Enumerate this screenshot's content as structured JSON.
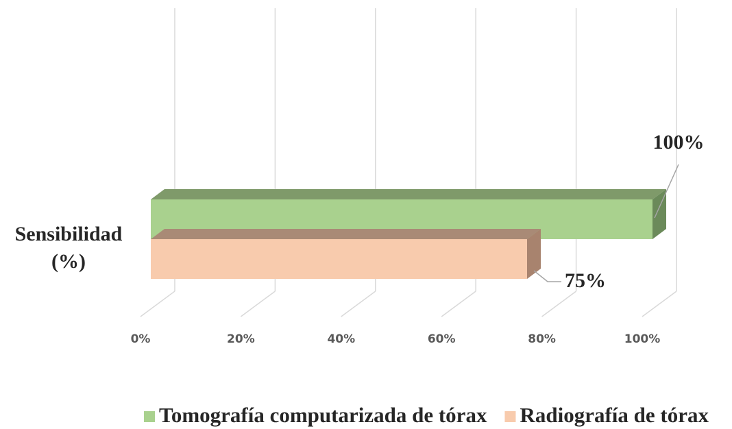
{
  "chart_data": {
    "type": "bar3d_horizontal",
    "categories": [
      "Sensibilidad (%)"
    ],
    "series": [
      {
        "name": "Tomografía computarizada de tórax",
        "color": "#a9d18e",
        "values": [
          100
        ],
        "value_labels": [
          "100%"
        ]
      },
      {
        "name": "Radiografía de tórax",
        "color": "#f8cbad",
        "values": [
          75
        ],
        "value_labels": [
          "75%"
        ]
      }
    ],
    "xlim": [
      0,
      100
    ],
    "xticks": [
      {
        "value": 0,
        "label": "0%"
      },
      {
        "value": 20,
        "label": "20%"
      },
      {
        "value": 40,
        "label": "40%"
      },
      {
        "value": 60,
        "label": "60%"
      },
      {
        "value": 80,
        "label": "80%"
      },
      {
        "value": 100,
        "label": "100%"
      }
    ],
    "grid": true,
    "legend": "bottom"
  }
}
